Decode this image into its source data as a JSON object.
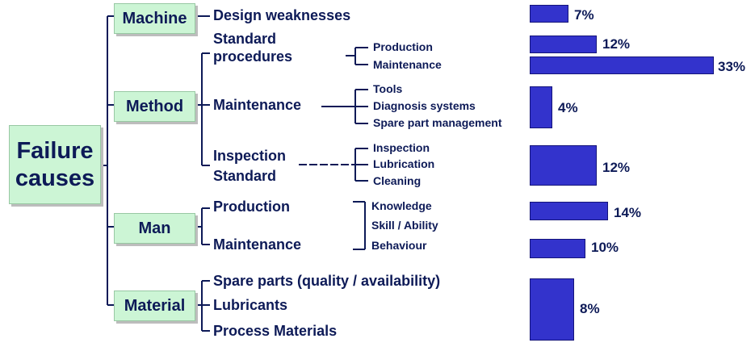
{
  "root": {
    "label_line1": "Failure",
    "label_line2": "causes"
  },
  "categories": {
    "machine": "Machine",
    "method": "Method",
    "man": "Man",
    "material": "Material"
  },
  "causes": {
    "design_weaknesses": "Design weaknesses",
    "standard_procedures_line1": "Standard",
    "standard_procedures_line2": "procedures",
    "maintenance": "Maintenance",
    "inspection_standard_line1": "Inspection",
    "inspection_standard_line2": "Standard",
    "man_production": "Production",
    "man_maintenance": "Maintenance",
    "spare_parts": "Spare parts (quality / availability)",
    "lubricants": "Lubricants",
    "process_materials": "Process Materials"
  },
  "subcauses": {
    "procedures": [
      "Production",
      "Maintenance"
    ],
    "maintenance": [
      "Tools",
      "Diagnosis systems",
      "Spare part management"
    ],
    "inspection": [
      "Inspection",
      "Lubrication",
      "Cleaning"
    ],
    "man": [
      "Knowledge",
      "Skill / Ability",
      "Behaviour"
    ]
  },
  "chart_data": {
    "type": "bar",
    "orientation": "horizontal",
    "categories": [
      "Design weaknesses",
      "Standard procedures - Production",
      "Standard procedures - Maintenance",
      "Maintenance",
      "Inspection Standard",
      "Man - Production",
      "Man - Maintenance",
      "Material"
    ],
    "values": [
      7,
      12,
      33,
      4,
      12,
      14,
      10,
      8
    ],
    "labels": [
      "7%",
      "12%",
      "33%",
      "4%",
      "12%",
      "14%",
      "10%",
      "8%"
    ],
    "bar_color": "#3333cc"
  }
}
